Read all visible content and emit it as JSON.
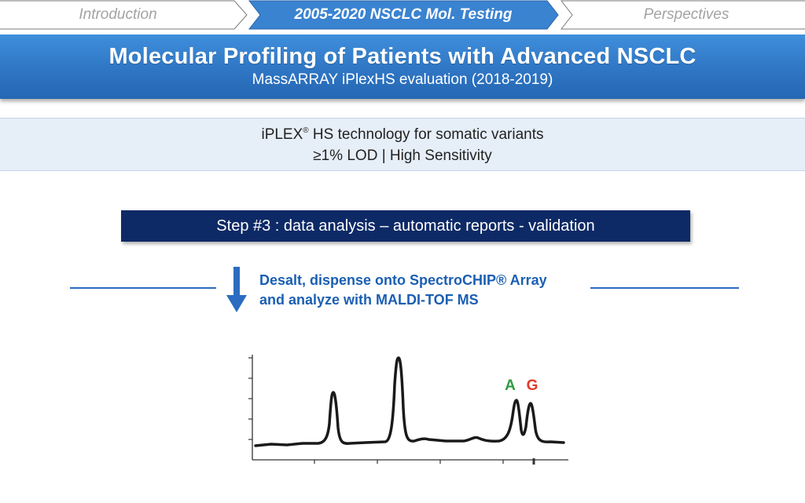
{
  "breadcrumb": {
    "items": [
      {
        "label": "Introduction",
        "state": "inactive"
      },
      {
        "label": "2005-2020 NSCLC Mol. Testing",
        "state": "active"
      },
      {
        "label": "Perspectives",
        "state": "inactive"
      }
    ]
  },
  "banner": {
    "title": "Molecular Profiling of Patients with Advanced NSCLC",
    "subtitle": "MassARRAY iPlexHS evaluation (2018-2019)"
  },
  "info": {
    "line1_prefix": "iPLEX",
    "line1_mark": "®",
    "line1_suffix": " HS technology for somatic variants",
    "line2": "≥1% LOD | High Sensitivity"
  },
  "step": {
    "label": "Step #3 : data analysis – automatic reports - validation"
  },
  "instruction": {
    "line1": "Desalt, dispense onto SpectroCHIP® Array",
    "line2": "and analyze with MALDI-TOF MS"
  },
  "spectrum": {
    "peak_labels": [
      {
        "text": "A",
        "color": "#2e9a3e"
      },
      {
        "text": "G",
        "color": "#e03a2a"
      }
    ]
  },
  "colors": {
    "accent_blue": "#2f76c4",
    "step_navy": "#0e2a66",
    "instruction_blue": "#1b5fb2"
  }
}
